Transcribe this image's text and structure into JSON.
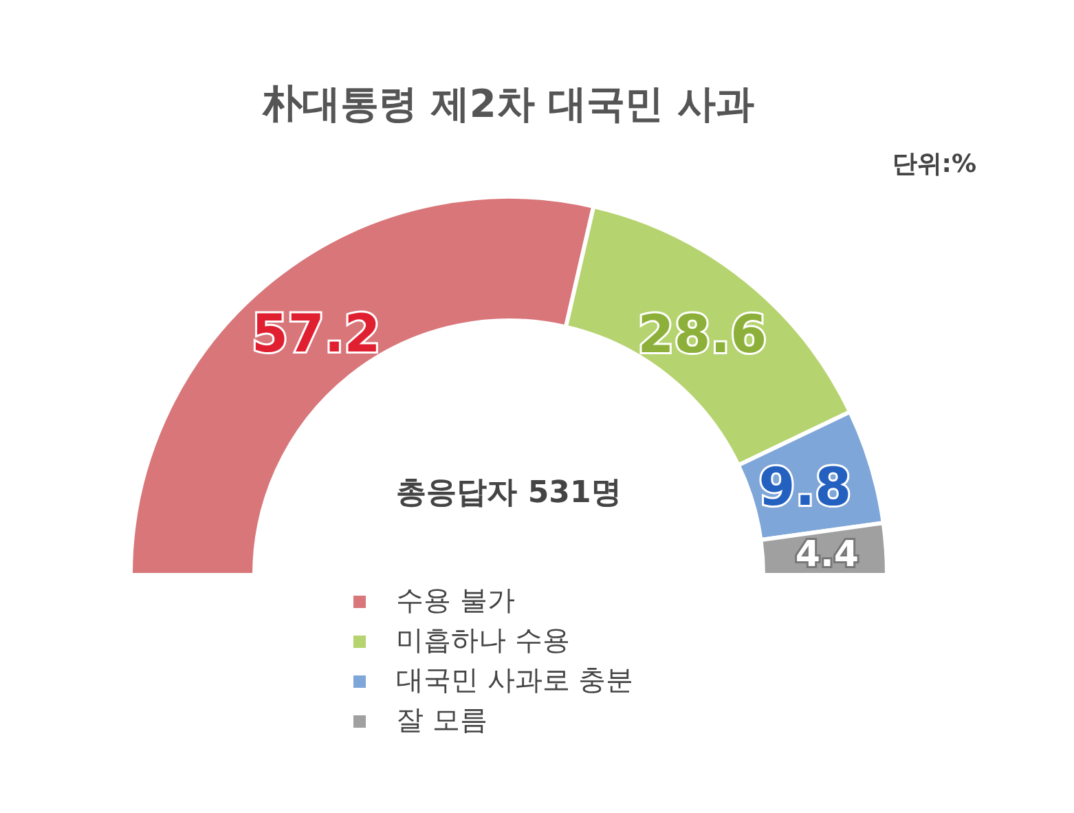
{
  "chart_data": {
    "type": "donut",
    "title": "朴대통령 제2차 대국민 사과",
    "categories": [
      "수용 불가",
      "미흡하나 수용",
      "대국민 사과로 충분",
      "잘 모름"
    ],
    "values": [
      57.2,
      28.6,
      9.8,
      4.4
    ],
    "colors": [
      "#d9767a",
      "#b5d36e",
      "#7fa6d8",
      "#a0a0a0"
    ],
    "data_labels": true,
    "legend": "bottom",
    "annotations": [
      "단위:%",
      "총응답자  531명"
    ]
  }
}
